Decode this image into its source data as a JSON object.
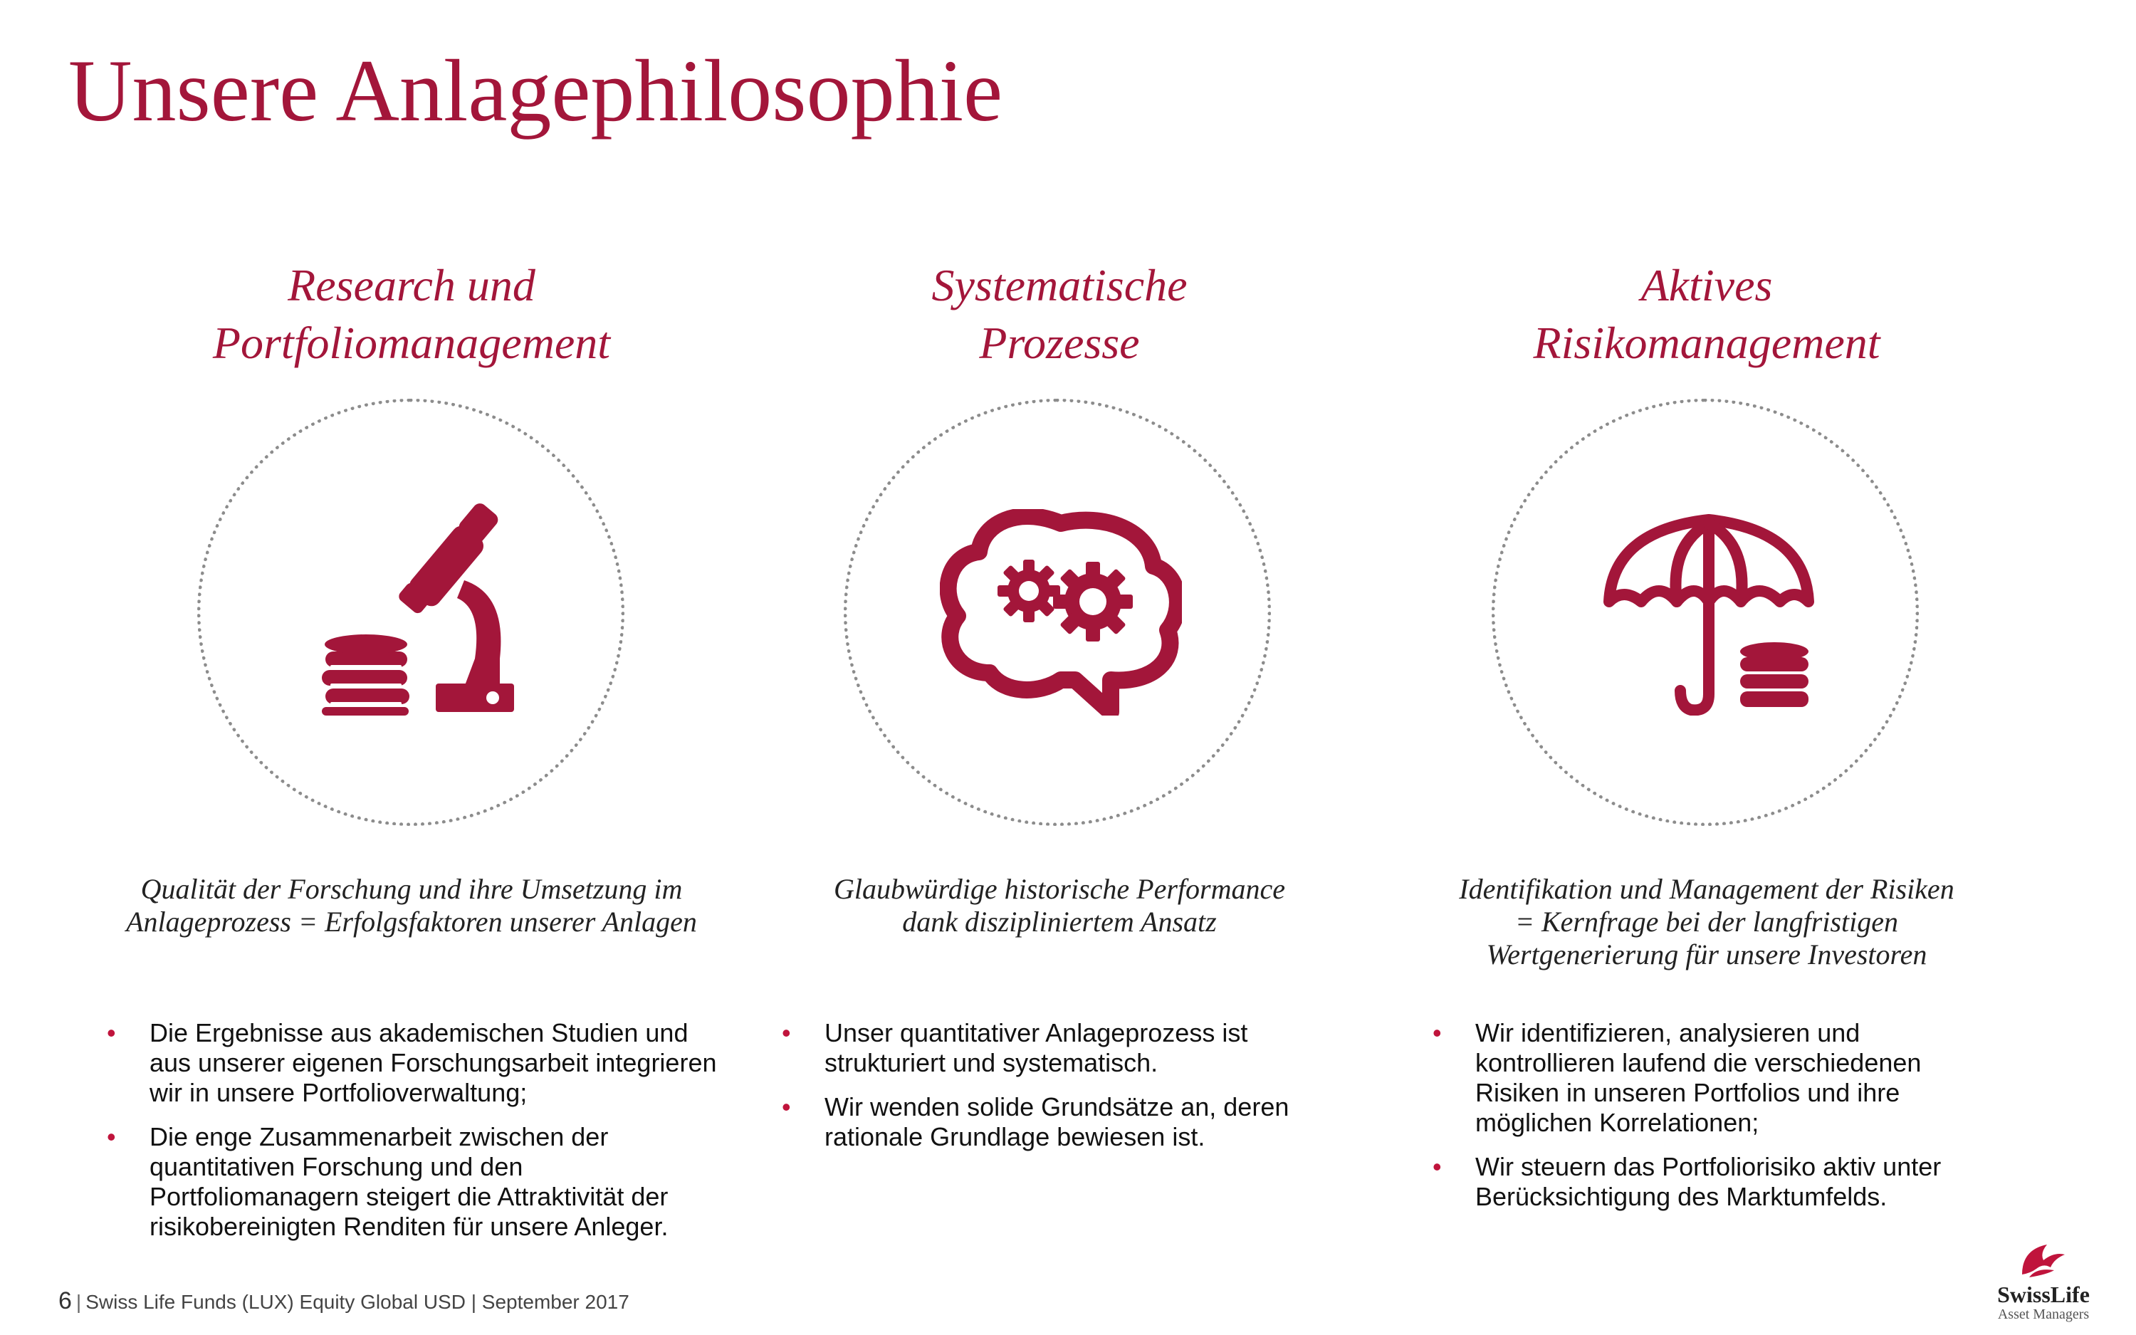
{
  "slide": {
    "title": "Unsere Anlagephilosophie"
  },
  "columns": [
    {
      "heading_line1": "Research und",
      "heading_line2": "Portfoliomanagement",
      "icon": "microscope-coins-icon",
      "subtitle_line1": "Qualität der Forschung und ihre Umsetzung im",
      "subtitle_line2": "Anlageprozess = Erfolgsfaktoren unserer Anlagen",
      "bullets": [
        "Die Ergebnisse aus akademischen Studien und aus unserer eigenen Forschungsarbeit integrieren wir in unsere Portfolioverwaltung;",
        "Die enge Zusammenarbeit zwischen der quantitativen Forschung und den Portfoliomanagern steigert die Attraktivität der risikobereinigten Renditen für unsere Anleger."
      ]
    },
    {
      "heading_line1": "Systematische",
      "heading_line2": "Prozesse",
      "icon": "brain-gears-icon",
      "subtitle_line1": "Glaubwürdige historische Performance",
      "subtitle_line2": "dank diszipliniertem Ansatz",
      "bullets": [
        "Unser quantitativer Anlageprozess ist strukturiert und systematisch.",
        "Wir wenden solide Grundsätze an, deren rationale Grundlage bewiesen ist."
      ]
    },
    {
      "heading_line1": "Aktives",
      "heading_line2": "Risikomanagement",
      "icon": "umbrella-coins-icon",
      "subtitle_line1": "Identifikation und Management der Risiken",
      "subtitle_line2": "= Kernfrage bei der langfristigen",
      "subtitle_line3": "Wertgenerierung  für unsere Investoren",
      "bullets": [
        "Wir identifizieren, analysieren und kontrollieren laufend die verschiedenen Risiken in unseren Portfolios und ihre möglichen Korrelationen;",
        "Wir steuern das Portfoliorisiko aktiv unter Berücksichtigung des Marktumfelds."
      ]
    }
  ],
  "footer": {
    "page_number": "6",
    "text": "Swiss Life Funds (LUX) Equity Global USD | September 2017"
  },
  "logo": {
    "name": "SwissLife",
    "sub": "Asset Managers",
    "icon": "swisslife-logo-icon"
  },
  "colors": {
    "accent": "#a3163a",
    "bullet": "#c0143c"
  }
}
